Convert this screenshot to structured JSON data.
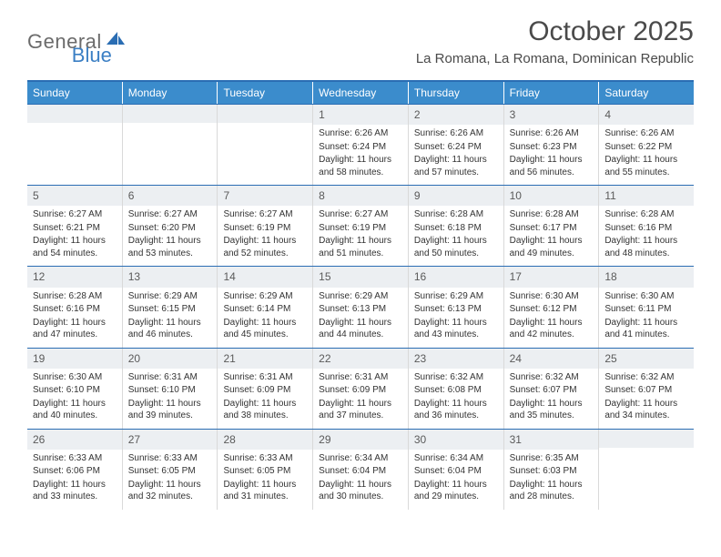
{
  "logo": {
    "text1": "General",
    "text2": "Blue",
    "icon_color": "#2a6db3"
  },
  "header": {
    "title": "October 2025",
    "location": "La Romana, La Romana, Dominican Republic"
  },
  "colors": {
    "header_bg": "#3b8ccc",
    "border_top": "#2a6db3",
    "daynum_bg": "#eceff2",
    "cell_border": "#d9d9d9",
    "text": "#333333"
  },
  "day_names": [
    "Sunday",
    "Monday",
    "Tuesday",
    "Wednesday",
    "Thursday",
    "Friday",
    "Saturday"
  ],
  "weeks": [
    [
      {
        "n": "",
        "sunrise": "",
        "sunset": "",
        "daylight": ""
      },
      {
        "n": "",
        "sunrise": "",
        "sunset": "",
        "daylight": ""
      },
      {
        "n": "",
        "sunrise": "",
        "sunset": "",
        "daylight": ""
      },
      {
        "n": "1",
        "sunrise": "Sunrise: 6:26 AM",
        "sunset": "Sunset: 6:24 PM",
        "daylight": "Daylight: 11 hours and 58 minutes."
      },
      {
        "n": "2",
        "sunrise": "Sunrise: 6:26 AM",
        "sunset": "Sunset: 6:24 PM",
        "daylight": "Daylight: 11 hours and 57 minutes."
      },
      {
        "n": "3",
        "sunrise": "Sunrise: 6:26 AM",
        "sunset": "Sunset: 6:23 PM",
        "daylight": "Daylight: 11 hours and 56 minutes."
      },
      {
        "n": "4",
        "sunrise": "Sunrise: 6:26 AM",
        "sunset": "Sunset: 6:22 PM",
        "daylight": "Daylight: 11 hours and 55 minutes."
      }
    ],
    [
      {
        "n": "5",
        "sunrise": "Sunrise: 6:27 AM",
        "sunset": "Sunset: 6:21 PM",
        "daylight": "Daylight: 11 hours and 54 minutes."
      },
      {
        "n": "6",
        "sunrise": "Sunrise: 6:27 AM",
        "sunset": "Sunset: 6:20 PM",
        "daylight": "Daylight: 11 hours and 53 minutes."
      },
      {
        "n": "7",
        "sunrise": "Sunrise: 6:27 AM",
        "sunset": "Sunset: 6:19 PM",
        "daylight": "Daylight: 11 hours and 52 minutes."
      },
      {
        "n": "8",
        "sunrise": "Sunrise: 6:27 AM",
        "sunset": "Sunset: 6:19 PM",
        "daylight": "Daylight: 11 hours and 51 minutes."
      },
      {
        "n": "9",
        "sunrise": "Sunrise: 6:28 AM",
        "sunset": "Sunset: 6:18 PM",
        "daylight": "Daylight: 11 hours and 50 minutes."
      },
      {
        "n": "10",
        "sunrise": "Sunrise: 6:28 AM",
        "sunset": "Sunset: 6:17 PM",
        "daylight": "Daylight: 11 hours and 49 minutes."
      },
      {
        "n": "11",
        "sunrise": "Sunrise: 6:28 AM",
        "sunset": "Sunset: 6:16 PM",
        "daylight": "Daylight: 11 hours and 48 minutes."
      }
    ],
    [
      {
        "n": "12",
        "sunrise": "Sunrise: 6:28 AM",
        "sunset": "Sunset: 6:16 PM",
        "daylight": "Daylight: 11 hours and 47 minutes."
      },
      {
        "n": "13",
        "sunrise": "Sunrise: 6:29 AM",
        "sunset": "Sunset: 6:15 PM",
        "daylight": "Daylight: 11 hours and 46 minutes."
      },
      {
        "n": "14",
        "sunrise": "Sunrise: 6:29 AM",
        "sunset": "Sunset: 6:14 PM",
        "daylight": "Daylight: 11 hours and 45 minutes."
      },
      {
        "n": "15",
        "sunrise": "Sunrise: 6:29 AM",
        "sunset": "Sunset: 6:13 PM",
        "daylight": "Daylight: 11 hours and 44 minutes."
      },
      {
        "n": "16",
        "sunrise": "Sunrise: 6:29 AM",
        "sunset": "Sunset: 6:13 PM",
        "daylight": "Daylight: 11 hours and 43 minutes."
      },
      {
        "n": "17",
        "sunrise": "Sunrise: 6:30 AM",
        "sunset": "Sunset: 6:12 PM",
        "daylight": "Daylight: 11 hours and 42 minutes."
      },
      {
        "n": "18",
        "sunrise": "Sunrise: 6:30 AM",
        "sunset": "Sunset: 6:11 PM",
        "daylight": "Daylight: 11 hours and 41 minutes."
      }
    ],
    [
      {
        "n": "19",
        "sunrise": "Sunrise: 6:30 AM",
        "sunset": "Sunset: 6:10 PM",
        "daylight": "Daylight: 11 hours and 40 minutes."
      },
      {
        "n": "20",
        "sunrise": "Sunrise: 6:31 AM",
        "sunset": "Sunset: 6:10 PM",
        "daylight": "Daylight: 11 hours and 39 minutes."
      },
      {
        "n": "21",
        "sunrise": "Sunrise: 6:31 AM",
        "sunset": "Sunset: 6:09 PM",
        "daylight": "Daylight: 11 hours and 38 minutes."
      },
      {
        "n": "22",
        "sunrise": "Sunrise: 6:31 AM",
        "sunset": "Sunset: 6:09 PM",
        "daylight": "Daylight: 11 hours and 37 minutes."
      },
      {
        "n": "23",
        "sunrise": "Sunrise: 6:32 AM",
        "sunset": "Sunset: 6:08 PM",
        "daylight": "Daylight: 11 hours and 36 minutes."
      },
      {
        "n": "24",
        "sunrise": "Sunrise: 6:32 AM",
        "sunset": "Sunset: 6:07 PM",
        "daylight": "Daylight: 11 hours and 35 minutes."
      },
      {
        "n": "25",
        "sunrise": "Sunrise: 6:32 AM",
        "sunset": "Sunset: 6:07 PM",
        "daylight": "Daylight: 11 hours and 34 minutes."
      }
    ],
    [
      {
        "n": "26",
        "sunrise": "Sunrise: 6:33 AM",
        "sunset": "Sunset: 6:06 PM",
        "daylight": "Daylight: 11 hours and 33 minutes."
      },
      {
        "n": "27",
        "sunrise": "Sunrise: 6:33 AM",
        "sunset": "Sunset: 6:05 PM",
        "daylight": "Daylight: 11 hours and 32 minutes."
      },
      {
        "n": "28",
        "sunrise": "Sunrise: 6:33 AM",
        "sunset": "Sunset: 6:05 PM",
        "daylight": "Daylight: 11 hours and 31 minutes."
      },
      {
        "n": "29",
        "sunrise": "Sunrise: 6:34 AM",
        "sunset": "Sunset: 6:04 PM",
        "daylight": "Daylight: 11 hours and 30 minutes."
      },
      {
        "n": "30",
        "sunrise": "Sunrise: 6:34 AM",
        "sunset": "Sunset: 6:04 PM",
        "daylight": "Daylight: 11 hours and 29 minutes."
      },
      {
        "n": "31",
        "sunrise": "Sunrise: 6:35 AM",
        "sunset": "Sunset: 6:03 PM",
        "daylight": "Daylight: 11 hours and 28 minutes."
      },
      {
        "n": "",
        "sunrise": "",
        "sunset": "",
        "daylight": ""
      }
    ]
  ]
}
